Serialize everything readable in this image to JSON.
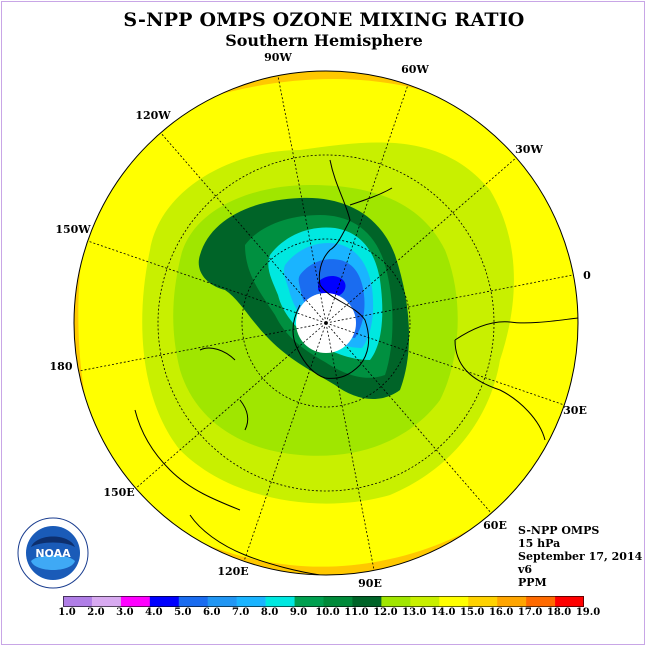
{
  "title": "S-NPP OMPS OZONE MIXING RATIO",
  "subtitle": "Southern Hemisphere",
  "longitude_labels": [
    "90W",
    "60W",
    "30W",
    "0",
    "30E",
    "60E",
    "90E",
    "120E",
    "150E",
    "180",
    "150W",
    "120W"
  ],
  "info": {
    "instrument": "S-NPP OMPS",
    "level": "15 hPa",
    "date": "September 17, 2014",
    "version": "v6",
    "units": "PPM"
  },
  "logo": {
    "text": "NOAA",
    "icon": "noaa-logo-icon"
  },
  "colorbar": {
    "ticks": [
      "1.0",
      "2.0",
      "3.0",
      "4.0",
      "5.0",
      "6.0",
      "7.0",
      "8.0",
      "9.0",
      "10.0",
      "11.0",
      "12.0",
      "13.0",
      "14.0",
      "15.0",
      "16.0",
      "17.0",
      "18.0",
      "19.0"
    ],
    "colors": [
      "#b07ee6",
      "#d8aaf0",
      "#ff00ff",
      "#0000ff",
      "#1a6cf0",
      "#2196f3",
      "#1ab4ff",
      "#00e8e0",
      "#00a050",
      "#008a3a",
      "#006428",
      "#a0e600",
      "#c8f000",
      "#ffff00",
      "#ffd200",
      "#ffa500",
      "#ff6a00",
      "#ff0000",
      "#8b5a2b"
    ]
  },
  "colors": {
    "band_outer": "#ffc800",
    "band_yellow": "#ffff00",
    "band_lime": "#c8f000",
    "band_lightgreen": "#a0e600",
    "band_darkgreen": "#006428",
    "band_green": "#009040",
    "band_cyan": "#00e8e0",
    "band_lightblue": "#1ab4ff",
    "band_blue": "#1a6cf0",
    "band_deepblue": "#0000ff",
    "no_data": "#ffffff"
  }
}
